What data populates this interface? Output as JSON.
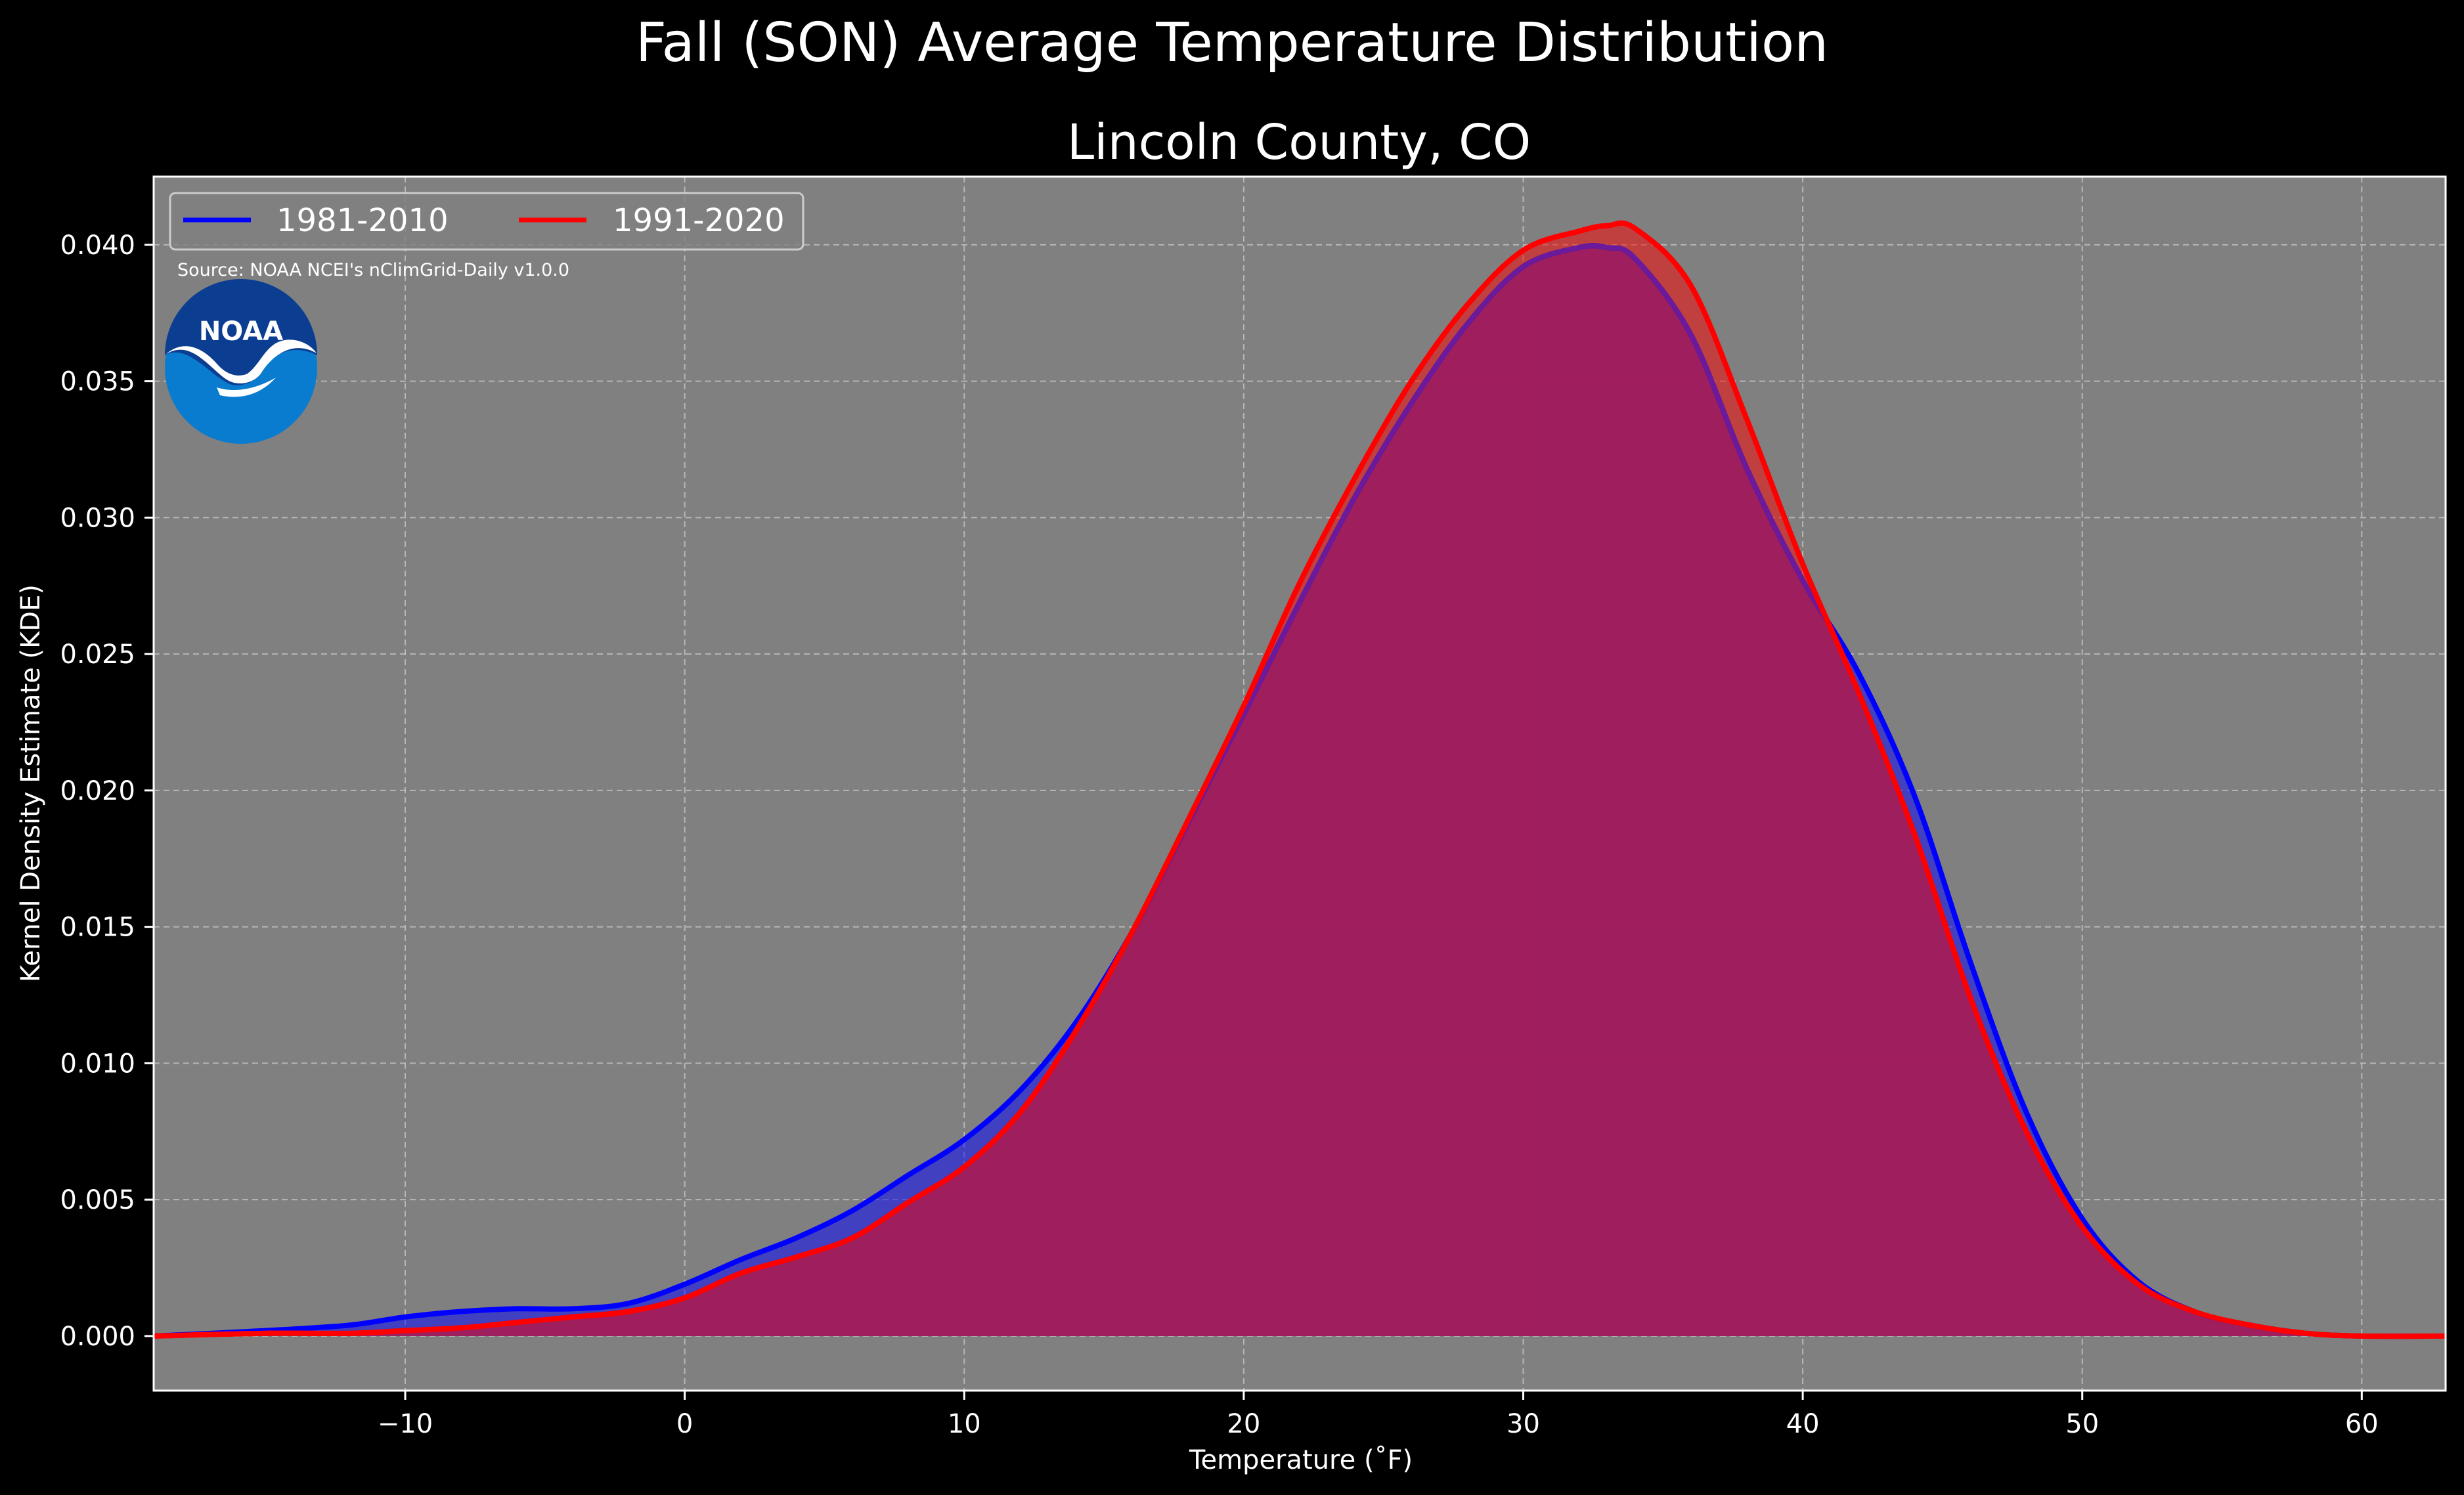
{
  "chart_data": {
    "type": "area",
    "title": "Fall (SON) Average Temperature Distribution",
    "subtitle": "Lincoln County, CO",
    "xlabel": "Temperature (˚F)",
    "ylabel": "Kernel Density Estimate (KDE)",
    "xlim": [
      -19,
      63
    ],
    "ylim": [
      -0.002,
      0.0425
    ],
    "xticks": [
      -10,
      0,
      10,
      20,
      30,
      40,
      50,
      60
    ],
    "xtick_labels": [
      "−10",
      "0",
      "10",
      "20",
      "30",
      "40",
      "50",
      "60"
    ],
    "yticks": [
      0.0,
      0.005,
      0.01,
      0.015,
      0.02,
      0.025,
      0.03,
      0.035,
      0.04
    ],
    "ytick_labels": [
      "0.000",
      "0.005",
      "0.010",
      "0.015",
      "0.020",
      "0.025",
      "0.030",
      "0.035",
      "0.040"
    ],
    "grid": true,
    "legend_position": "top-left",
    "background_color": "#808080",
    "series": [
      {
        "name": "1981-2010",
        "color": "#0000ff",
        "fill_color": "#0000ff",
        "x": [
          -19,
          -15,
          -12,
          -10,
          -8,
          -6,
          -4,
          -2,
          0,
          2,
          4,
          6,
          8,
          10,
          12,
          14,
          16,
          18,
          20,
          22,
          24,
          26,
          28,
          30,
          32,
          33,
          34,
          36,
          38,
          40,
          42,
          44,
          46,
          48,
          50,
          52,
          54,
          56,
          58,
          60,
          63
        ],
        "y": [
          0.0,
          0.0002,
          0.0004,
          0.0007,
          0.0009,
          0.001,
          0.001,
          0.0012,
          0.0019,
          0.0028,
          0.0036,
          0.0046,
          0.0059,
          0.0072,
          0.009,
          0.0115,
          0.0148,
          0.0188,
          0.0228,
          0.0269,
          0.0308,
          0.0342,
          0.0371,
          0.0392,
          0.0399,
          0.0399,
          0.0395,
          0.0367,
          0.0318,
          0.0277,
          0.0243,
          0.0198,
          0.0137,
          0.0082,
          0.0043,
          0.002,
          0.0009,
          0.0004,
          0.0001,
          0.0,
          0.0
        ]
      },
      {
        "name": "1991-2020",
        "color": "#ff0000",
        "fill_color": "#ff0000",
        "x": [
          -19,
          -15,
          -12,
          -10,
          -8,
          -6,
          -4,
          -2,
          0,
          2,
          4,
          6,
          8,
          10,
          12,
          14,
          16,
          18,
          20,
          22,
          24,
          26,
          28,
          30,
          32,
          33,
          34,
          36,
          38,
          40,
          42,
          44,
          46,
          48,
          50,
          52,
          54,
          56,
          58,
          60,
          63
        ],
        "y": [
          0.0,
          0.0001,
          0.0001,
          0.0002,
          0.0003,
          0.0005,
          0.0007,
          0.0009,
          0.0014,
          0.0023,
          0.0029,
          0.0036,
          0.0049,
          0.0062,
          0.0082,
          0.0112,
          0.0148,
          0.0189,
          0.0231,
          0.0276,
          0.0315,
          0.035,
          0.0378,
          0.0398,
          0.0405,
          0.0407,
          0.0406,
          0.0385,
          0.0336,
          0.0283,
          0.0236,
          0.0184,
          0.0124,
          0.0075,
          0.004,
          0.0019,
          0.0009,
          0.0004,
          0.0001,
          0.0,
          0.0
        ]
      }
    ],
    "overlap_color": "#9e1e5e",
    "source": "Source: NOAA NCEI's nClimGrid-Daily v1.0.0",
    "logo_text": "NOAA"
  }
}
